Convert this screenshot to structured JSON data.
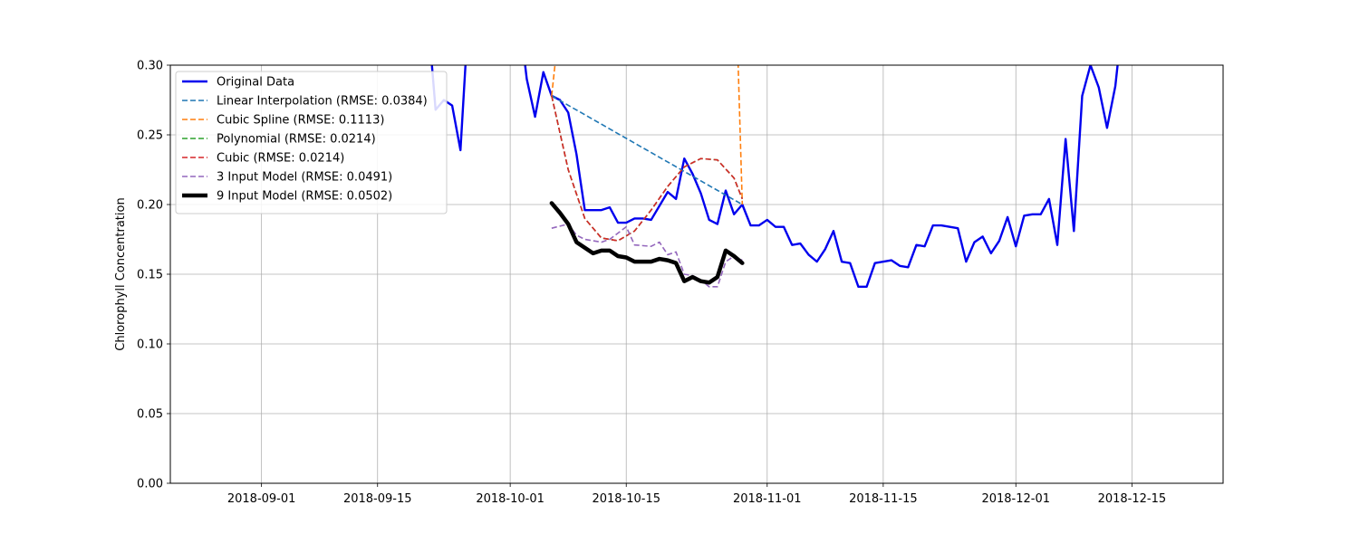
{
  "chart_data": {
    "type": "line",
    "title": "",
    "xlabel": "",
    "ylabel": "Chlorophyll Concentration",
    "xlim": [
      "2018-08-21",
      "2018-12-26"
    ],
    "ylim": [
      0,
      0.3
    ],
    "x_ticks": [
      "2018-09-01",
      "2018-09-15",
      "2018-10-01",
      "2018-10-15",
      "2018-11-01",
      "2018-11-15",
      "2018-12-01",
      "2018-12-15"
    ],
    "y_ticks": [
      "0.00",
      "0.05",
      "0.10",
      "0.15",
      "0.20",
      "0.25",
      "0.30"
    ],
    "grid": true,
    "legend_position": "upper-left",
    "series": [
      {
        "name": "Original Data",
        "color": "#0000ee",
        "style": "solid",
        "width": "thick",
        "points": [
          [
            "2018-09-21",
            0.34
          ],
          [
            "2018-09-22",
            0.268
          ],
          [
            "2018-09-23",
            0.275
          ],
          [
            "2018-09-24",
            0.271
          ],
          [
            "2018-09-25",
            0.239
          ],
          [
            "2018-09-26",
            0.34
          ],
          [
            "2018-10-02",
            0.34
          ],
          [
            "2018-10-03",
            0.29
          ],
          [
            "2018-10-04",
            0.263
          ],
          [
            "2018-10-05",
            0.295
          ],
          [
            "2018-10-06",
            0.278
          ],
          [
            "2018-10-07",
            0.275
          ],
          [
            "2018-10-08",
            0.266
          ],
          [
            "2018-10-09",
            0.236
          ],
          [
            "2018-10-10",
            0.196
          ],
          [
            "2018-10-11",
            0.196
          ],
          [
            "2018-10-12",
            0.196
          ],
          [
            "2018-10-13",
            0.198
          ],
          [
            "2018-10-14",
            0.187
          ],
          [
            "2018-10-15",
            0.187
          ],
          [
            "2018-10-16",
            0.19
          ],
          [
            "2018-10-17",
            0.19
          ],
          [
            "2018-10-18",
            0.189
          ],
          [
            "2018-10-20",
            0.209
          ],
          [
            "2018-10-21",
            0.204
          ],
          [
            "2018-10-22",
            0.233
          ],
          [
            "2018-10-23",
            0.222
          ],
          [
            "2018-10-24",
            0.208
          ],
          [
            "2018-10-25",
            0.189
          ],
          [
            "2018-10-26",
            0.186
          ],
          [
            "2018-10-27",
            0.21
          ],
          [
            "2018-10-28",
            0.193
          ],
          [
            "2018-10-29",
            0.2
          ],
          [
            "2018-10-30",
            0.185
          ],
          [
            "2018-10-31",
            0.185
          ],
          [
            "2018-11-01",
            0.189
          ],
          [
            "2018-11-02",
            0.184
          ],
          [
            "2018-11-03",
            0.184
          ],
          [
            "2018-11-04",
            0.171
          ],
          [
            "2018-11-05",
            0.172
          ],
          [
            "2018-11-06",
            0.164
          ],
          [
            "2018-11-07",
            0.159
          ],
          [
            "2018-11-08",
            0.168
          ],
          [
            "2018-11-09",
            0.181
          ],
          [
            "2018-11-10",
            0.159
          ],
          [
            "2018-11-11",
            0.158
          ],
          [
            "2018-11-12",
            0.141
          ],
          [
            "2018-11-13",
            0.141
          ],
          [
            "2018-11-14",
            0.158
          ],
          [
            "2018-11-16",
            0.16
          ],
          [
            "2018-11-17",
            0.156
          ],
          [
            "2018-11-18",
            0.155
          ],
          [
            "2018-11-19",
            0.171
          ],
          [
            "2018-11-20",
            0.17
          ],
          [
            "2018-11-21",
            0.185
          ],
          [
            "2018-11-22",
            0.185
          ],
          [
            "2018-11-24",
            0.183
          ],
          [
            "2018-11-25",
            0.159
          ],
          [
            "2018-11-26",
            0.173
          ],
          [
            "2018-11-27",
            0.177
          ],
          [
            "2018-11-28",
            0.165
          ],
          [
            "2018-11-29",
            0.174
          ],
          [
            "2018-11-30",
            0.191
          ],
          [
            "2018-12-01",
            0.17
          ],
          [
            "2018-12-02",
            0.192
          ],
          [
            "2018-12-03",
            0.193
          ],
          [
            "2018-12-04",
            0.193
          ],
          [
            "2018-12-05",
            0.204
          ],
          [
            "2018-12-06",
            0.171
          ],
          [
            "2018-12-07",
            0.247
          ],
          [
            "2018-12-08",
            0.181
          ],
          [
            "2018-12-09",
            0.278
          ],
          [
            "2018-12-10",
            0.3
          ],
          [
            "2018-12-11",
            0.284
          ],
          [
            "2018-12-12",
            0.255
          ],
          [
            "2018-12-13",
            0.285
          ],
          [
            "2018-12-14",
            0.34
          ]
        ]
      },
      {
        "name": "Linear Interpolation (RMSE: 0.0384)",
        "color": "#1f77b4",
        "style": "dashed",
        "width": "thin",
        "points": [
          [
            "2018-10-06",
            0.278
          ],
          [
            "2018-10-29",
            0.2
          ]
        ]
      },
      {
        "name": "Cubic Spline (RMSE: 0.1113)",
        "color": "#ff7f0e",
        "style": "dashed",
        "width": "thin",
        "points": [
          [
            "2018-10-06",
            0.278
          ],
          [
            "2018-10-06.4",
            0.3
          ],
          [
            "2018-10-06.8",
            0.34
          ],
          [
            "2018-10-28.3",
            0.34
          ],
          [
            "2018-10-28.5",
            0.3
          ],
          [
            "2018-10-29",
            0.2
          ]
        ]
      },
      {
        "name": "Polynomial (RMSE: 0.0214)",
        "color": "#2ca02c",
        "style": "dashed",
        "width": "thin",
        "points": [
          [
            "2018-10-06",
            0.278
          ],
          [
            "2018-10-08",
            0.225
          ],
          [
            "2018-10-10",
            0.19
          ],
          [
            "2018-10-12",
            0.176
          ],
          [
            "2018-10-14",
            0.174
          ],
          [
            "2018-10-16",
            0.181
          ],
          [
            "2018-10-18",
            0.196
          ],
          [
            "2018-10-20",
            0.213
          ],
          [
            "2018-10-22",
            0.227
          ],
          [
            "2018-10-24",
            0.233
          ],
          [
            "2018-10-26",
            0.232
          ],
          [
            "2018-10-28",
            0.219
          ],
          [
            "2018-10-29",
            0.204
          ]
        ]
      },
      {
        "name": "Cubic (RMSE: 0.0214)",
        "color": "#d62728",
        "style": "dashed",
        "width": "thin",
        "points": [
          [
            "2018-10-06",
            0.278
          ],
          [
            "2018-10-08",
            0.225
          ],
          [
            "2018-10-10",
            0.19
          ],
          [
            "2018-10-12",
            0.176
          ],
          [
            "2018-10-14",
            0.174
          ],
          [
            "2018-10-16",
            0.181
          ],
          [
            "2018-10-18",
            0.196
          ],
          [
            "2018-10-20",
            0.213
          ],
          [
            "2018-10-22",
            0.227
          ],
          [
            "2018-10-24",
            0.233
          ],
          [
            "2018-10-26",
            0.232
          ],
          [
            "2018-10-28",
            0.219
          ],
          [
            "2018-10-29",
            0.204
          ]
        ]
      },
      {
        "name": "3 Input Model (RMSE: 0.0491)",
        "color": "#9467bd",
        "style": "dashed",
        "width": "thin",
        "points": [
          [
            "2018-10-06",
            0.183
          ],
          [
            "2018-10-08",
            0.186
          ],
          [
            "2018-10-09",
            0.178
          ],
          [
            "2018-10-10",
            0.175
          ],
          [
            "2018-10-11",
            0.174
          ],
          [
            "2018-10-12",
            0.173
          ],
          [
            "2018-10-13",
            0.175
          ],
          [
            "2018-10-15",
            0.184
          ],
          [
            "2018-10-16",
            0.171
          ],
          [
            "2018-10-18",
            0.17
          ],
          [
            "2018-10-19",
            0.173
          ],
          [
            "2018-10-20",
            0.164
          ],
          [
            "2018-10-21",
            0.166
          ],
          [
            "2018-10-22",
            0.15
          ],
          [
            "2018-10-23",
            0.149
          ],
          [
            "2018-10-24",
            0.146
          ],
          [
            "2018-10-25",
            0.141
          ],
          [
            "2018-10-26",
            0.141
          ],
          [
            "2018-10-27",
            0.159
          ],
          [
            "2018-10-28",
            0.163
          ],
          [
            "2018-10-29",
            0.16
          ]
        ]
      },
      {
        "name": "9 Input Model (RMSE: 0.0502)",
        "color": "#000000",
        "style": "solid",
        "width": "heavy",
        "points": [
          [
            "2018-10-06",
            0.201
          ],
          [
            "2018-10-07",
            0.194
          ],
          [
            "2018-10-08",
            0.186
          ],
          [
            "2018-10-09",
            0.173
          ],
          [
            "2018-10-10",
            0.169
          ],
          [
            "2018-10-11",
            0.165
          ],
          [
            "2018-10-12",
            0.167
          ],
          [
            "2018-10-13",
            0.167
          ],
          [
            "2018-10-14",
            0.163
          ],
          [
            "2018-10-15",
            0.162
          ],
          [
            "2018-10-16",
            0.159
          ],
          [
            "2018-10-17",
            0.159
          ],
          [
            "2018-10-18",
            0.159
          ],
          [
            "2018-10-19",
            0.161
          ],
          [
            "2018-10-20",
            0.16
          ],
          [
            "2018-10-21",
            0.158
          ],
          [
            "2018-10-22",
            0.145
          ],
          [
            "2018-10-23",
            0.148
          ],
          [
            "2018-10-24",
            0.145
          ],
          [
            "2018-10-25",
            0.144
          ],
          [
            "2018-10-26",
            0.148
          ],
          [
            "2018-10-27",
            0.167
          ],
          [
            "2018-10-28",
            0.163
          ],
          [
            "2018-10-29",
            0.158
          ]
        ]
      }
    ]
  }
}
